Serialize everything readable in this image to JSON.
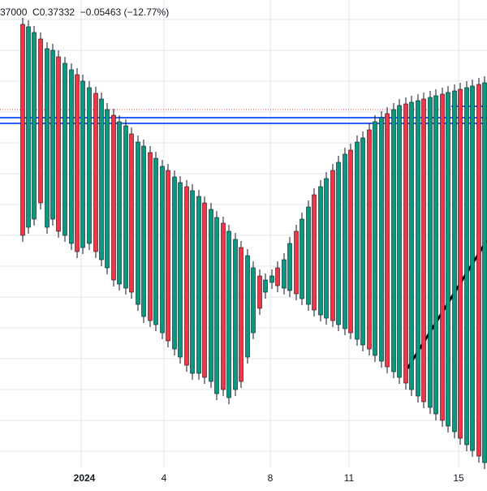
{
  "header": {
    "open_fragment": "37000",
    "close_label": "C",
    "close_value": "0.37332",
    "change": "−0.05463",
    "change_pct": "(−12.77%)"
  },
  "colors": {
    "up": "#089981",
    "down": "#f23645",
    "wick": "#131722",
    "grid": "#e0e3eb",
    "level": "#2962ff",
    "trendline": "#000000",
    "dotted": "#f23645",
    "text": "#131722"
  },
  "chart_data": {
    "type": "candlestick",
    "x_tick_labels": [
      "2024",
      "4",
      "8",
      "11",
      "15"
    ],
    "y_range": [
      0,
      600
    ],
    "grid": true,
    "candles": [
      [
        28,
        30,
        290,
        320
      ],
      [
        35,
        33,
        280,
        300
      ],
      [
        42,
        40,
        270,
        290
      ],
      [
        50,
        48,
        250,
        285
      ],
      [
        58,
        60,
        280,
        300
      ],
      [
        65,
        62,
        270,
        300
      ],
      [
        72,
        70,
        285,
        305
      ],
      [
        80,
        78,
        290,
        310
      ],
      [
        88,
        86,
        300,
        320
      ],
      [
        95,
        92,
        310,
        330
      ],
      [
        102,
        100,
        305,
        330
      ],
      [
        110,
        108,
        300,
        320
      ],
      [
        118,
        115,
        310,
        340
      ],
      [
        125,
        122,
        320,
        335
      ],
      [
        132,
        135,
        330,
        350
      ],
      [
        140,
        142,
        345,
        360
      ],
      [
        147,
        150,
        350,
        365
      ],
      [
        155,
        155,
        355,
        380
      ],
      [
        162,
        165,
        360,
        385
      ],
      [
        170,
        175,
        375,
        395
      ],
      [
        177,
        180,
        390,
        400
      ],
      [
        185,
        188,
        395,
        410
      ],
      [
        192,
        195,
        400,
        420
      ],
      [
        200,
        205,
        410,
        430
      ],
      [
        207,
        210,
        420,
        440
      ],
      [
        215,
        218,
        430,
        450
      ],
      [
        222,
        225,
        440,
        455
      ],
      [
        230,
        230,
        450,
        470
      ],
      [
        237,
        235,
        460,
        470
      ],
      [
        245,
        242,
        460,
        475
      ],
      [
        252,
        250,
        465,
        480
      ],
      [
        260,
        258,
        470,
        490
      ],
      [
        267,
        268,
        485,
        495
      ],
      [
        275,
        275,
        480,
        495
      ],
      [
        282,
        285,
        490,
        500
      ],
      [
        290,
        295,
        480,
        500
      ],
      [
        297,
        305,
        470,
        495
      ],
      [
        305,
        315,
        440,
        480
      ],
      [
        312,
        330,
        410,
        450
      ],
      [
        320,
        340,
        380,
        425
      ],
      [
        327,
        345,
        360,
        390
      ],
      [
        335,
        348,
        340,
        375
      ],
      [
        342,
        352,
        330,
        360
      ],
      [
        350,
        355,
        320,
        350
      ],
      [
        357,
        358,
        300,
        335
      ],
      [
        365,
        362,
        285,
        320
      ],
      [
        372,
        368,
        270,
        300
      ],
      [
        380,
        375,
        255,
        285
      ],
      [
        387,
        382,
        240,
        270
      ],
      [
        395,
        388,
        230,
        260
      ],
      [
        402,
        392,
        220,
        250
      ],
      [
        410,
        395,
        210,
        240
      ],
      [
        417,
        400,
        200,
        230
      ],
      [
        425,
        405,
        190,
        220
      ],
      [
        432,
        410,
        185,
        210
      ],
      [
        440,
        418,
        175,
        205
      ],
      [
        447,
        425,
        170,
        195
      ],
      [
        455,
        430,
        160,
        185
      ],
      [
        462,
        438,
        150,
        175
      ],
      [
        470,
        445,
        145,
        170
      ],
      [
        477,
        452,
        140,
        160
      ],
      [
        485,
        458,
        135,
        155
      ],
      [
        492,
        465,
        130,
        150
      ],
      [
        500,
        472,
        128,
        145
      ],
      [
        507,
        480,
        126,
        140
      ],
      [
        515,
        488,
        124,
        138
      ],
      [
        522,
        495,
        122,
        136
      ],
      [
        530,
        502,
        120,
        134
      ],
      [
        537,
        510,
        118,
        132
      ],
      [
        545,
        518,
        116,
        130
      ],
      [
        552,
        525,
        114,
        128
      ],
      [
        560,
        532,
        112,
        126
      ],
      [
        567,
        540,
        110,
        124
      ],
      [
        575,
        548,
        108,
        122
      ],
      [
        582,
        555,
        106,
        120
      ],
      [
        590,
        562,
        104,
        118
      ],
      [
        597,
        570,
        102,
        116
      ]
    ]
  }
}
